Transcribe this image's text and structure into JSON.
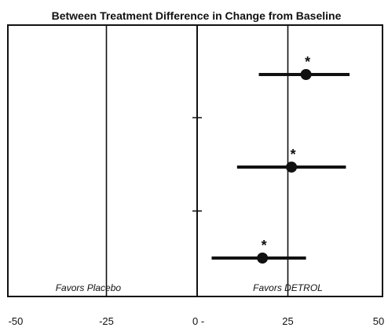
{
  "chart_data": {
    "type": "scatter",
    "title": "Between Treatment Difference in Change from Baseline",
    "xlim": [
      -50,
      50
    ],
    "x_ticks": [
      {
        "value": -50,
        "label": "-50"
      },
      {
        "value": -25,
        "label": "-25"
      },
      {
        "value": 0,
        "label": "0 -"
      },
      {
        "value": 25,
        "label": "25"
      },
      {
        "value": 50,
        "label": "50"
      }
    ],
    "reference_lines": [
      -25,
      0,
      25
    ],
    "annotations": [
      {
        "text": "Favors Placebo",
        "x": -30
      },
      {
        "text": "Favors DETROL",
        "x": 25
      }
    ],
    "series": [
      {
        "points": [
          {
            "estimate": 30,
            "ci_low": 17,
            "ci_high": 42,
            "marker": "*"
          },
          {
            "estimate": 26,
            "ci_low": 11,
            "ci_high": 41,
            "marker": "*"
          },
          {
            "estimate": 18,
            "ci_low": 4,
            "ci_high": 30,
            "marker": "*"
          }
        ]
      }
    ],
    "grid": false
  }
}
